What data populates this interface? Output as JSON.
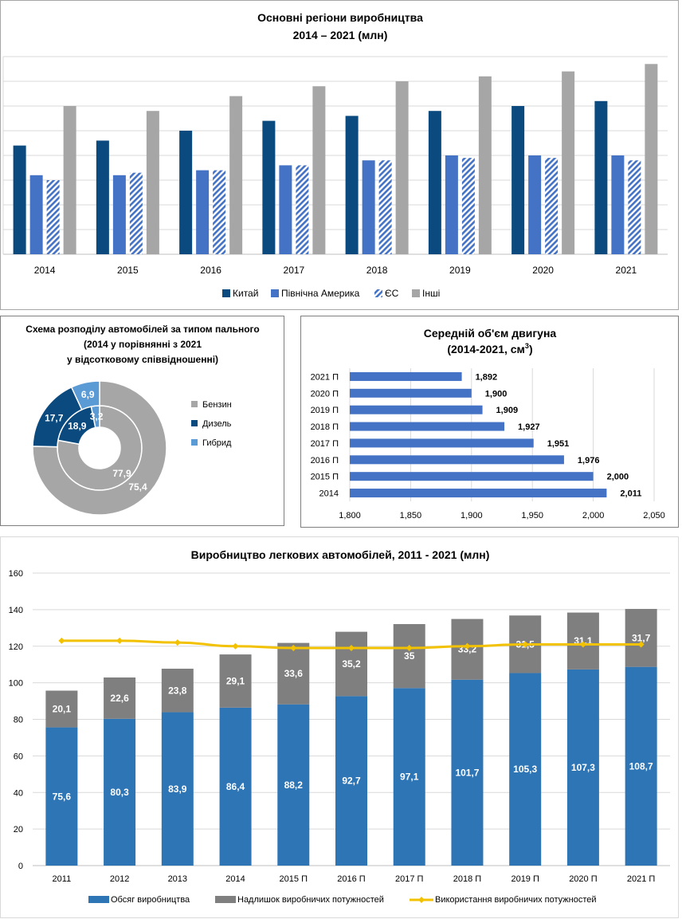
{
  "chart_data": [
    {
      "type": "bar",
      "title": "Основні регіони виробництва",
      "subtitle": "2014 – 2021 (млн)",
      "categories": [
        "2014",
        "2015",
        "2016",
        "2017",
        "2018",
        "2019",
        "2020",
        "2021"
      ],
      "series": [
        {
          "name": "Китай",
          "values": [
            22,
            23,
            25,
            27,
            28,
            29,
            30,
            31
          ],
          "color": "#0b4a7f"
        },
        {
          "name": "Північна Америка",
          "values": [
            16,
            16,
            17,
            18,
            19,
            20,
            20,
            20
          ],
          "color": "#4472c4"
        },
        {
          "name": "ЄС",
          "values": [
            15,
            16.5,
            17,
            18,
            19,
            19.5,
            19.5,
            19
          ],
          "color": "#4472c4",
          "pattern": "hatch"
        },
        {
          "name": "Інші",
          "values": [
            30,
            29,
            32,
            34,
            35,
            36,
            37,
            38.5
          ],
          "color": "#a6a6a6"
        }
      ],
      "ylim": [
        0,
        40
      ],
      "grid": true,
      "legend": "bottom"
    },
    {
      "type": "pie",
      "variant": "doughnut",
      "title": "Схема розподілу автомобілей за типом пального",
      "subtitle_lines": [
        "(2014  у порівнянні з 2021",
        "у відсотковому співвідношенні)"
      ],
      "categories": [
        "Бензин",
        "Дизель",
        "Гибрид"
      ],
      "series": [
        {
          "name": "2014",
          "ring": "inner",
          "values": [
            77.9,
            18.9,
            3.2
          ]
        },
        {
          "name": "2021",
          "ring": "outer",
          "values": [
            75.4,
            17.7,
            6.9
          ]
        }
      ],
      "labels": {
        "inner": [
          "77,9",
          "18,9",
          "3,2"
        ],
        "outer": [
          "75,4",
          "17,7",
          "6,9"
        ]
      },
      "colors": [
        "#a6a6a6",
        "#0b4a7f",
        "#5b9bd5"
      ],
      "legend": "right"
    },
    {
      "type": "bar",
      "orientation": "horizontal",
      "title": "Середній об'єм двигуна",
      "subtitle": "(2014-2021, см",
      "subtitle_sup": "3",
      "subtitle_end": ")",
      "categories": [
        "2021 П",
        "2020 П",
        "2019 П",
        "2018 П",
        "2017 П",
        "2016 П",
        "2015 П",
        "2014"
      ],
      "values": [
        1892,
        1900,
        1909,
        1927,
        1951,
        1976,
        2000,
        2011
      ],
      "value_labels": [
        "1,892",
        "1,900",
        "1,909",
        "1,927",
        "1,951",
        "1,976",
        "2,000",
        "2,011"
      ],
      "xlim": [
        1800,
        2050
      ],
      "xticks": [
        1800,
        1850,
        1900,
        1950,
        2000,
        2050
      ],
      "xtick_labels": [
        "1,800",
        "1,850",
        "1,900",
        "1,950",
        "2,000",
        "2,050"
      ],
      "color": "#4472c4",
      "grid": true
    },
    {
      "type": "bar",
      "stacked": true,
      "title": "Виробництво легкових автомобілей, 2011 - 2021 (млн)",
      "categories": [
        "2011",
        "2012",
        "2013",
        "2014",
        "2015 П",
        "2016 П",
        "2017 П",
        "2018 П",
        "2019 П",
        "2020 П",
        "2021 П"
      ],
      "series": [
        {
          "name": "Обсяг виробництва",
          "values": [
            75.6,
            80.3,
            83.9,
            86.4,
            88.2,
            92.7,
            97.1,
            101.7,
            105.3,
            107.3,
            108.7
          ],
          "labels": [
            "75,6",
            "80,3",
            "83,9",
            "86,4",
            "88,2",
            "92,7",
            "97,1",
            "101,7",
            "105,3",
            "107,3",
            "108,7"
          ],
          "color": "#2e75b6"
        },
        {
          "name": "Надлишок виробничих потужностей",
          "values": [
            20.1,
            22.6,
            23.8,
            29.1,
            33.6,
            35.2,
            35,
            33.2,
            31.5,
            31.1,
            31.7
          ],
          "labels": [
            "20,1",
            "22,6",
            "23,8",
            "29,1",
            "33,6",
            "35,2",
            "35",
            "33,2",
            "31,5",
            "31,1",
            "31,7"
          ],
          "color": "#7f7f7f"
        },
        {
          "name": "Використання виробничих потужностей",
          "type": "line",
          "values": [
            123,
            123,
            122,
            120,
            119,
            119,
            119,
            120,
            121,
            121,
            121
          ],
          "color": "#f2c200"
        }
      ],
      "ylim": [
        0,
        160
      ],
      "yticks": [
        0,
        20,
        40,
        60,
        80,
        100,
        120,
        140,
        160
      ],
      "legend": "bottom"
    }
  ]
}
